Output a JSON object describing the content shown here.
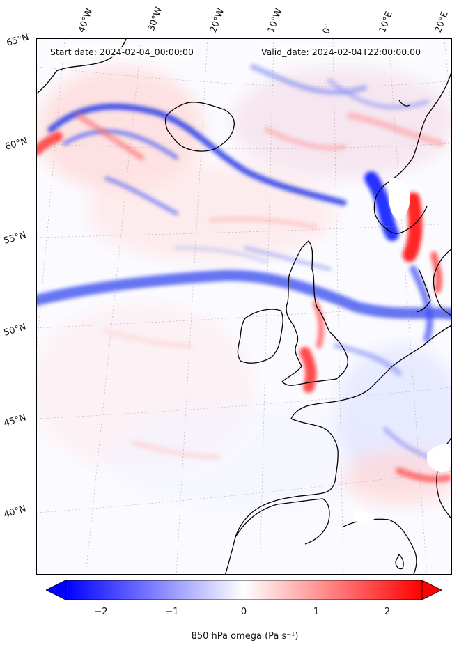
{
  "header": {
    "start_date": "Start date: 2024-02-04_00:00:00",
    "valid_date": "Valid_date: 2024-02-04T22:00:00.00"
  },
  "longitude_labels": [
    "40°W",
    "30°W",
    "20°W",
    "10°W",
    "0°",
    "10°E",
    "20°E"
  ],
  "latitude_labels": [
    "65°N",
    "60°N",
    "55°N",
    "50°N",
    "45°N",
    "40°N"
  ],
  "colorbar": {
    "label": "850 hPa omega (Pa s⁻¹)",
    "ticks": [
      "−2",
      "−1",
      "0",
      "1",
      "2"
    ],
    "tick_values": [
      -2,
      -1,
      0,
      1,
      2
    ],
    "range": [
      -2.5,
      2.5
    ],
    "extend": "both",
    "colormap": "bwr",
    "low_color": "#0000ff",
    "mid_color": "#ffffff",
    "high_color": "#ff0000"
  },
  "map": {
    "projection": "lambert conformal",
    "field": "850 hPa omega",
    "coastline_color": "#000000",
    "gridline_style": "dotted gray"
  }
}
